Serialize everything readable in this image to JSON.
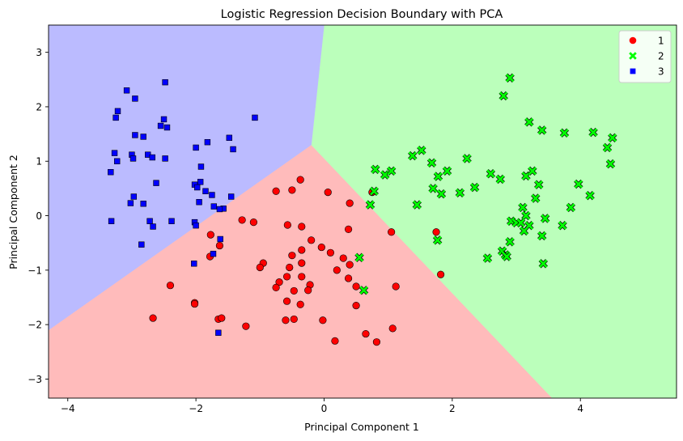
{
  "chart_data": {
    "type": "scatter",
    "title": "Logistic Regression Decision Boundary with PCA",
    "xlabel": "Principal Component 1",
    "ylabel": "Principal Component 2",
    "xlim": [
      -4.3,
      5.5
    ],
    "ylim": [
      -3.35,
      3.5
    ],
    "xticks": [
      -4,
      -2,
      0,
      2,
      4
    ],
    "yticks": [
      -3,
      -2,
      -1,
      0,
      1,
      2,
      3
    ],
    "grid": false,
    "legend_position": "top-right",
    "regions": [
      {
        "class": "1",
        "color": "#ffbbbb",
        "polygon": [
          [
            -0.2,
            1.3
          ],
          [
            -4.3,
            -2.1
          ],
          [
            -4.3,
            -3.35
          ],
          [
            3.56,
            -3.35
          ]
        ]
      },
      {
        "class": "2",
        "color": "#bbffbb",
        "polygon": [
          [
            -0.2,
            1.3
          ],
          [
            0,
            3.5
          ],
          [
            5.5,
            3.5
          ],
          [
            5.5,
            -3.35
          ],
          [
            3.56,
            -3.35
          ]
        ]
      },
      {
        "class": "3",
        "color": "#bbbbff",
        "polygon": [
          [
            -0.2,
            1.3
          ],
          [
            0,
            3.5
          ],
          [
            -4.3,
            3.5
          ],
          [
            -4.3,
            -2.1
          ]
        ]
      }
    ],
    "series": [
      {
        "name": "1",
        "marker": "circle",
        "color": "#ff0000",
        "points": [
          [
            -0.75,
            0.45
          ],
          [
            -0.5,
            0.47
          ],
          [
            -0.37,
            0.66
          ],
          [
            0.06,
            0.43
          ],
          [
            0.4,
            0.23
          ],
          [
            0.75,
            0.43
          ],
          [
            -1.28,
            -0.08
          ],
          [
            -1.1,
            -0.12
          ],
          [
            -0.57,
            -0.17
          ],
          [
            -0.35,
            -0.2
          ],
          [
            0.38,
            -0.25
          ],
          [
            1.05,
            -0.3
          ],
          [
            1.75,
            -0.3
          ],
          [
            -1.77,
            -0.35
          ],
          [
            -1.63,
            -0.55
          ],
          [
            -0.2,
            -0.45
          ],
          [
            -0.04,
            -0.58
          ],
          [
            -0.35,
            -0.63
          ],
          [
            -0.5,
            -0.73
          ],
          [
            0.1,
            -0.68
          ],
          [
            -1.78,
            -0.75
          ],
          [
            -0.95,
            -0.87
          ],
          [
            -1.0,
            -0.95
          ],
          [
            -0.35,
            -0.87
          ],
          [
            -0.54,
            -0.95
          ],
          [
            0.3,
            -0.78
          ],
          [
            0.2,
            -1.0
          ],
          [
            0.4,
            -0.9
          ],
          [
            0.38,
            -1.15
          ],
          [
            -0.7,
            -1.22
          ],
          [
            -0.58,
            -1.12
          ],
          [
            -0.75,
            -1.32
          ],
          [
            -0.35,
            -1.12
          ],
          [
            -0.22,
            -1.27
          ],
          [
            -0.47,
            -1.38
          ],
          [
            -0.25,
            -1.37
          ],
          [
            0.5,
            -1.3
          ],
          [
            1.12,
            -1.3
          ],
          [
            1.82,
            -1.08
          ],
          [
            -2.4,
            -1.28
          ],
          [
            -0.58,
            -1.57
          ],
          [
            -0.37,
            -1.63
          ],
          [
            0.5,
            -1.65
          ],
          [
            -2.02,
            -1.6
          ],
          [
            -2.02,
            -1.62
          ],
          [
            -1.65,
            -1.9
          ],
          [
            -1.6,
            -1.88
          ],
          [
            -2.67,
            -1.88
          ],
          [
            -0.6,
            -1.92
          ],
          [
            -0.47,
            -1.9
          ],
          [
            -0.02,
            -1.92
          ],
          [
            -1.22,
            -2.03
          ],
          [
            1.07,
            -2.07
          ],
          [
            0.65,
            -2.17
          ],
          [
            0.17,
            -2.3
          ],
          [
            0.82,
            -2.32
          ]
        ]
      },
      {
        "name": "2",
        "marker": "x",
        "color": "#00ff00",
        "points": [
          [
            2.9,
            2.53
          ],
          [
            2.8,
            2.2
          ],
          [
            3.2,
            1.72
          ],
          [
            3.4,
            1.57
          ],
          [
            3.75,
            1.52
          ],
          [
            4.2,
            1.53
          ],
          [
            4.5,
            1.43
          ],
          [
            4.42,
            1.25
          ],
          [
            4.47,
            0.95
          ],
          [
            1.52,
            1.2
          ],
          [
            1.38,
            1.1
          ],
          [
            1.68,
            0.97
          ],
          [
            2.23,
            1.05
          ],
          [
            1.78,
            0.72
          ],
          [
            1.92,
            0.82
          ],
          [
            0.8,
            0.85
          ],
          [
            0.95,
            0.75
          ],
          [
            1.05,
            0.82
          ],
          [
            2.6,
            0.77
          ],
          [
            2.75,
            0.67
          ],
          [
            3.15,
            0.73
          ],
          [
            3.25,
            0.82
          ],
          [
            3.35,
            0.57
          ],
          [
            3.3,
            0.32
          ],
          [
            1.7,
            0.5
          ],
          [
            1.83,
            0.4
          ],
          [
            2.12,
            0.42
          ],
          [
            2.35,
            0.52
          ],
          [
            3.97,
            0.58
          ],
          [
            4.15,
            0.37
          ],
          [
            0.78,
            0.45
          ],
          [
            0.72,
            0.2
          ],
          [
            1.45,
            0.2
          ],
          [
            3.1,
            0.15
          ],
          [
            3.15,
            0.0
          ],
          [
            3.85,
            0.15
          ],
          [
            2.92,
            -0.1
          ],
          [
            3.0,
            -0.13
          ],
          [
            3.07,
            -0.13
          ],
          [
            3.45,
            -0.05
          ],
          [
            3.2,
            -0.18
          ],
          [
            3.72,
            -0.18
          ],
          [
            3.12,
            -0.28
          ],
          [
            3.4,
            -0.37
          ],
          [
            1.77,
            -0.45
          ],
          [
            2.9,
            -0.48
          ],
          [
            2.78,
            -0.65
          ],
          [
            2.83,
            -0.72
          ],
          [
            2.55,
            -0.78
          ],
          [
            2.85,
            -0.75
          ],
          [
            3.42,
            -0.88
          ],
          [
            0.55,
            -0.77
          ],
          [
            0.62,
            -1.37
          ]
        ]
      },
      {
        "name": "3",
        "marker": "square",
        "color": "#0000ff",
        "points": [
          [
            -2.48,
            2.45
          ],
          [
            -3.08,
            2.3
          ],
          [
            -2.95,
            2.15
          ],
          [
            -3.22,
            1.92
          ],
          [
            -3.25,
            1.8
          ],
          [
            -2.5,
            1.77
          ],
          [
            -1.08,
            1.8
          ],
          [
            -2.55,
            1.65
          ],
          [
            -2.45,
            1.62
          ],
          [
            -2.95,
            1.48
          ],
          [
            -2.82,
            1.45
          ],
          [
            -1.48,
            1.43
          ],
          [
            -1.82,
            1.35
          ],
          [
            -1.42,
            1.22
          ],
          [
            -2.0,
            1.25
          ],
          [
            -3.27,
            1.15
          ],
          [
            -3.0,
            1.12
          ],
          [
            -2.75,
            1.12
          ],
          [
            -2.98,
            1.05
          ],
          [
            -2.68,
            1.07
          ],
          [
            -2.48,
            1.05
          ],
          [
            -3.23,
            1.0
          ],
          [
            -1.92,
            0.9
          ],
          [
            -3.33,
            0.8
          ],
          [
            -1.93,
            0.62
          ],
          [
            -2.62,
            0.6
          ],
          [
            -2.02,
            0.57
          ],
          [
            -1.98,
            0.52
          ],
          [
            -2.97,
            0.35
          ],
          [
            -1.85,
            0.45
          ],
          [
            -1.75,
            0.38
          ],
          [
            -1.45,
            0.35
          ],
          [
            -3.02,
            0.23
          ],
          [
            -2.82,
            0.22
          ],
          [
            -1.95,
            0.25
          ],
          [
            -1.72,
            0.17
          ],
          [
            -1.57,
            0.13
          ],
          [
            -1.63,
            0.12
          ],
          [
            -2.72,
            -0.1
          ],
          [
            -2.38,
            -0.1
          ],
          [
            -2.02,
            -0.12
          ],
          [
            -3.32,
            -0.1
          ],
          [
            -2.67,
            -0.2
          ],
          [
            -2.0,
            -0.18
          ],
          [
            -2.85,
            -0.53
          ],
          [
            -1.62,
            -0.43
          ],
          [
            -1.73,
            -0.7
          ],
          [
            -2.03,
            -0.88
          ],
          [
            -1.65,
            -2.15
          ]
        ]
      }
    ]
  }
}
